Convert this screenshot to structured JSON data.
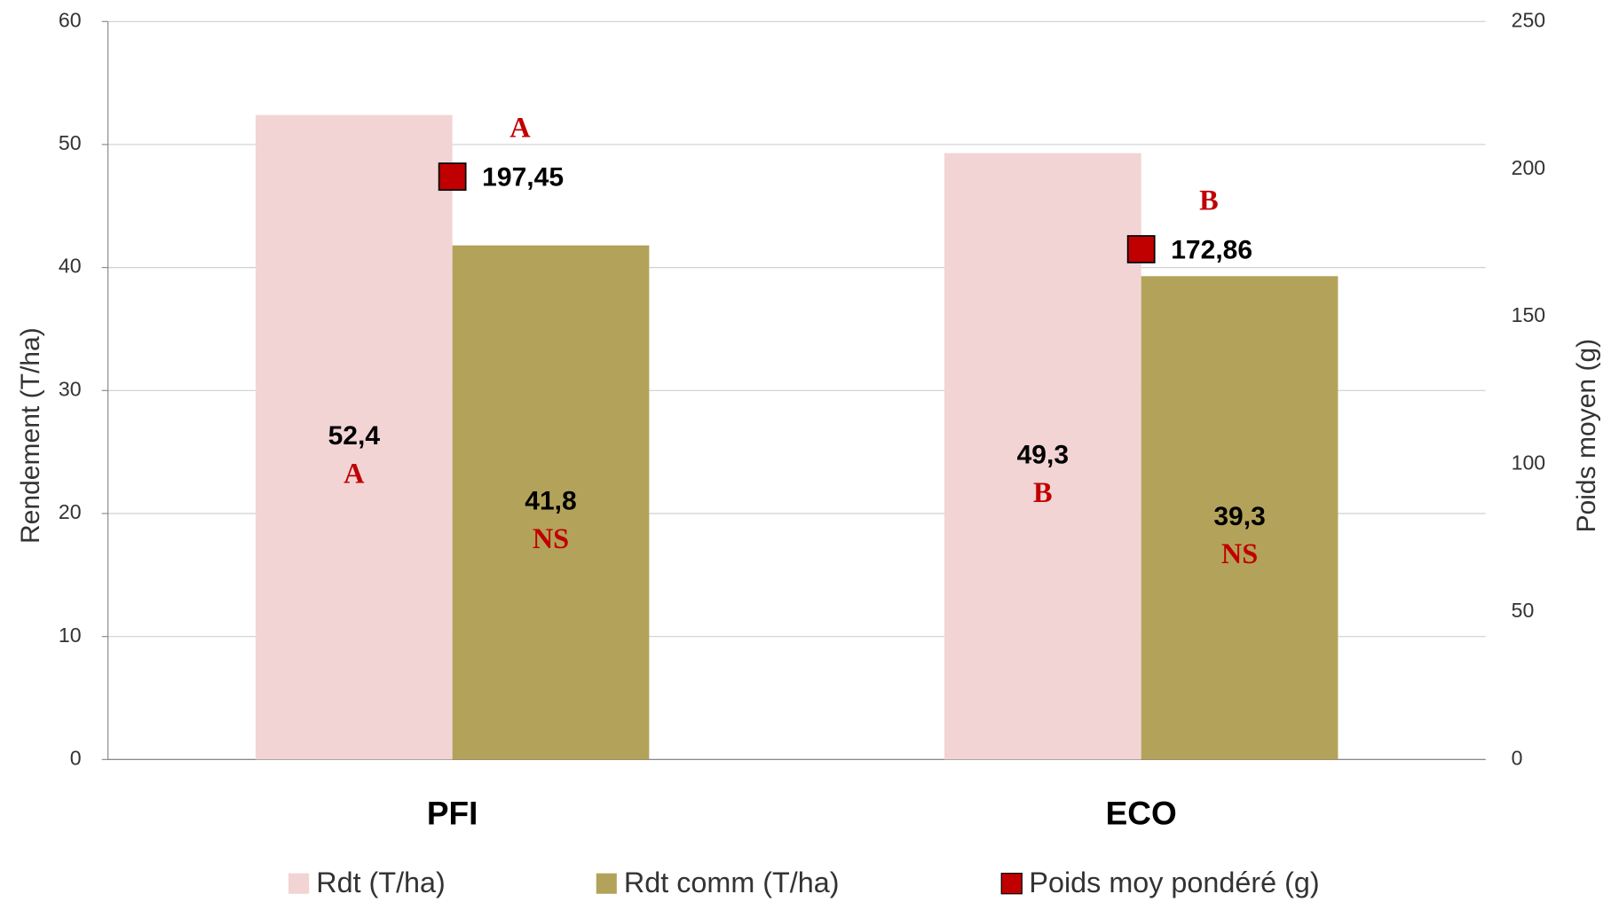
{
  "chart_data": {
    "type": "bar",
    "categories": [
      "PFI",
      "ECO"
    ],
    "series": [
      {
        "name": "Rdt (T/ha)",
        "color": "#f2d4d5",
        "values": [
          52.4,
          49.3
        ],
        "value_labels": [
          "52,4",
          "49,3"
        ],
        "letters": [
          "A",
          "B"
        ]
      },
      {
        "name": "Rdt comm (T/ha)",
        "color": "#b3a35a",
        "values": [
          41.8,
          39.3
        ],
        "value_labels": [
          "41,8",
          "39,3"
        ],
        "letters": [
          "NS",
          "NS"
        ]
      },
      {
        "name": "Poids moy pondéré (g)",
        "color": "#c00000",
        "type": "marker",
        "axis": "y2",
        "values": [
          197.45,
          172.86
        ],
        "value_labels": [
          "197,45",
          "172,86"
        ],
        "letters": [
          "A",
          "B"
        ]
      }
    ],
    "ylabel": "Rendement (T/ha)",
    "y2label": "Poids moyen (g)",
    "ylim": [
      0,
      60
    ],
    "yticks": [
      0,
      10,
      20,
      30,
      40,
      50,
      60
    ],
    "y2lim": [
      0,
      250
    ],
    "y2ticks": [
      0,
      50,
      100,
      150,
      200,
      250
    ],
    "grid": true,
    "legend": "bottom"
  }
}
